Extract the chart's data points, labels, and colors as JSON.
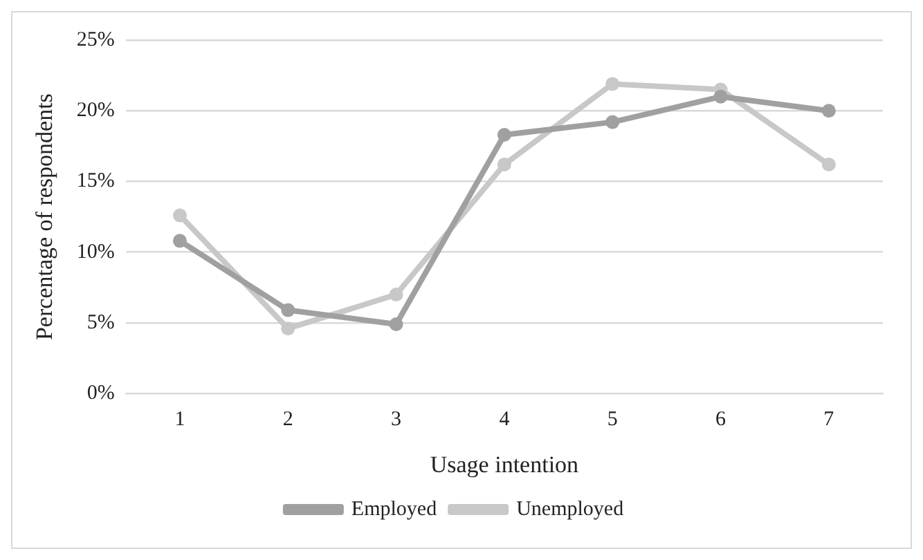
{
  "chart_data": {
    "type": "line",
    "xlabel": "Usage intention",
    "ylabel": "Percentage of respondents",
    "categories": [
      "1",
      "2",
      "3",
      "4",
      "5",
      "6",
      "7"
    ],
    "series": [
      {
        "name": "Employed",
        "color": "#a0a0a0",
        "values": [
          10.8,
          5.9,
          4.9,
          18.3,
          19.2,
          21.0,
          20.0
        ]
      },
      {
        "name": "Unemployed",
        "color": "#c8c8c8",
        "values": [
          12.6,
          4.6,
          7.0,
          16.2,
          21.9,
          21.5,
          16.2
        ]
      }
    ],
    "ylim": [
      0,
      25
    ],
    "yticks": [
      {
        "value": 0,
        "label": "0%"
      },
      {
        "value": 5,
        "label": "5%"
      },
      {
        "value": 10,
        "label": "10%"
      },
      {
        "value": 15,
        "label": "15%"
      },
      {
        "value": 20,
        "label": "20%"
      },
      {
        "value": 25,
        "label": "25%"
      }
    ],
    "grid": "y",
    "legend": "bottom",
    "marker": "circle",
    "line_style": "solid"
  }
}
